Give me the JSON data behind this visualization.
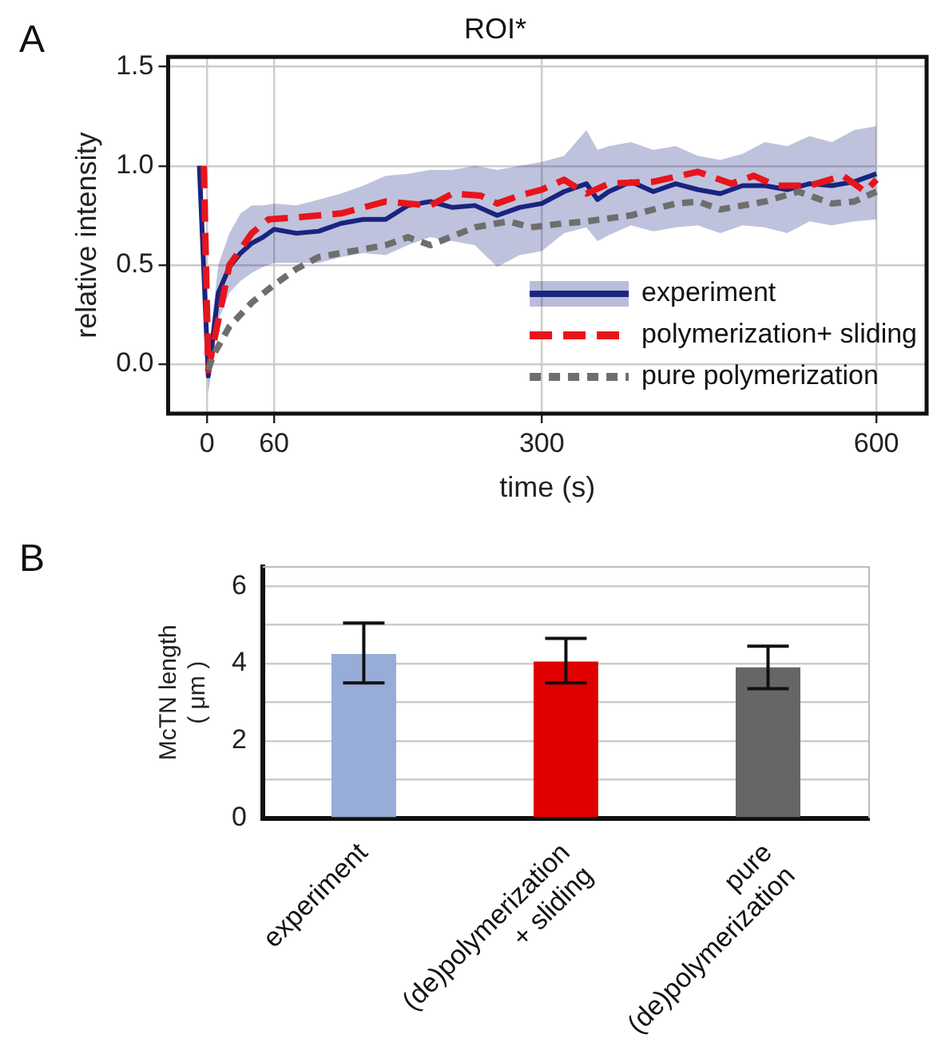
{
  "chart_data": [
    {
      "type": "line",
      "title": "ROI*",
      "xlabel": "time (s)",
      "ylabel": "relative intensity",
      "annotations": [
        "A"
      ],
      "xlim": [
        -35,
        645
      ],
      "xticks": [
        0,
        60,
        300,
        600
      ],
      "ylim": [
        -0.25,
        1.55
      ],
      "yticks": [
        {
          "value": 0,
          "label": "0.0"
        },
        {
          "value": 0.5,
          "label": "0.5"
        },
        {
          "value": 1,
          "label": "1.0"
        },
        {
          "value": 1.5,
          "label": "1.5"
        }
      ],
      "grid": true,
      "legend": "bottom right",
      "marker": "none",
      "series": [
        {
          "name": "experiment",
          "color": "#1a2580",
          "line_style": "solid",
          "x": [
            -7,
            1,
            10,
            20,
            30,
            40,
            50,
            60,
            80,
            100,
            120,
            140,
            160,
            180,
            200,
            220,
            240,
            260,
            280,
            300,
            320,
            340,
            350,
            360,
            380,
            400,
            420,
            440,
            460,
            480,
            500,
            520,
            540,
            560,
            580,
            600
          ],
          "values": [
            1.0,
            -0.06,
            0.36,
            0.49,
            0.56,
            0.61,
            0.64,
            0.68,
            0.66,
            0.67,
            0.71,
            0.73,
            0.73,
            0.8,
            0.82,
            0.79,
            0.8,
            0.75,
            0.79,
            0.81,
            0.87,
            0.91,
            0.83,
            0.87,
            0.92,
            0.87,
            0.91,
            0.88,
            0.86,
            0.9,
            0.9,
            0.88,
            0.91,
            0.9,
            0.92,
            0.96
          ],
          "upper": [
            1.06,
            0.05,
            0.5,
            0.66,
            0.76,
            0.8,
            0.8,
            0.81,
            0.8,
            0.83,
            0.86,
            0.9,
            0.95,
            0.96,
            0.98,
            0.98,
            1.0,
            0.98,
            1.0,
            1.02,
            1.05,
            1.18,
            1.08,
            1.1,
            1.12,
            1.08,
            1.1,
            1.05,
            1.03,
            1.06,
            1.12,
            1.1,
            1.15,
            1.12,
            1.18,
            1.2
          ],
          "lower": [
            0.96,
            -0.15,
            0.22,
            0.36,
            0.42,
            0.46,
            0.49,
            0.51,
            0.51,
            0.51,
            0.54,
            0.56,
            0.55,
            0.6,
            0.64,
            0.62,
            0.6,
            0.49,
            0.55,
            0.57,
            0.66,
            0.69,
            0.62,
            0.65,
            0.7,
            0.67,
            0.69,
            0.7,
            0.66,
            0.7,
            0.69,
            0.66,
            0.72,
            0.7,
            0.72,
            0.73
          ]
        },
        {
          "name": "polymerization+ sliding",
          "color": "#e8141c",
          "line_style": "dashed",
          "x": [
            -3,
            1,
            20,
            40,
            55,
            80,
            120,
            160,
            180,
            200,
            220,
            245,
            260,
            280,
            300,
            320,
            340,
            360,
            400,
            440,
            470,
            490,
            510,
            540,
            570,
            590,
            600
          ],
          "values": [
            1.0,
            -0.03,
            0.5,
            0.66,
            0.73,
            0.74,
            0.76,
            0.82,
            0.81,
            0.8,
            0.86,
            0.85,
            0.81,
            0.85,
            0.88,
            0.93,
            0.86,
            0.91,
            0.92,
            0.97,
            0.91,
            0.95,
            0.9,
            0.9,
            0.95,
            0.87,
            0.93
          ]
        },
        {
          "name": "pure polymerization",
          "color": "#6e6e6e",
          "line_style": "dotted",
          "x": [
            1,
            5,
            20,
            40,
            60,
            80,
            100,
            130,
            160,
            180,
            200,
            240,
            270,
            290,
            320,
            340,
            380,
            420,
            440,
            460,
            500,
            530,
            560,
            580,
            600
          ],
          "values": [
            -0.03,
            0.04,
            0.19,
            0.31,
            0.4,
            0.48,
            0.54,
            0.57,
            0.6,
            0.64,
            0.6,
            0.69,
            0.72,
            0.69,
            0.71,
            0.72,
            0.75,
            0.81,
            0.82,
            0.78,
            0.82,
            0.87,
            0.81,
            0.82,
            0.87
          ]
        }
      ]
    },
    {
      "type": "bar",
      "ylabel": "McTN length\n( μm )",
      "annotations": [
        "B"
      ],
      "categories": [
        "experiment",
        "(de)polymerization\n+ sliding",
        "pure\n(de)polymerization"
      ],
      "values": [
        4.25,
        4.05,
        3.9
      ],
      "colors": [
        "#98acd8",
        "#e00000",
        "#666666"
      ],
      "errors": [
        [
          3.5,
          5.05
        ],
        [
          3.5,
          4.65
        ],
        [
          3.35,
          4.45
        ]
      ],
      "ylim": [
        0,
        6.5
      ],
      "yticks": [
        0,
        {
          "value": 1,
          "label": null
        },
        2,
        {
          "value": 3,
          "label": null
        },
        4,
        {
          "value": 5,
          "label": null
        },
        6
      ],
      "grid": "y",
      "legend": false
    }
  ]
}
